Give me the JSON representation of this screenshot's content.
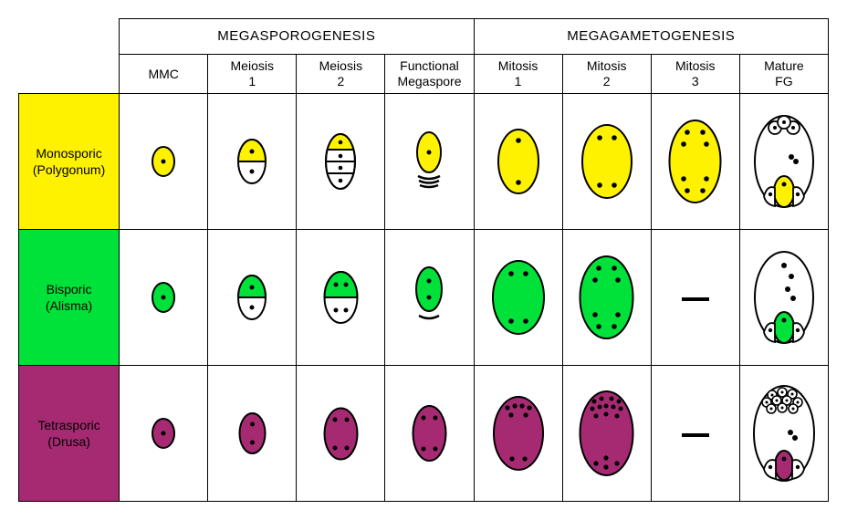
{
  "headers": {
    "group1": "MEGASPOROGENESIS",
    "group2": "MEGAGAMETOGENESIS",
    "cols": [
      "MMC",
      "Meiosis\n1",
      "Meiosis\n2",
      "Functional\nMegaspore",
      "Mitosis\n1",
      "Mitosis\n2",
      "Mitosis\n3",
      "Mature\nFG"
    ]
  },
  "rows": [
    {
      "label1": "Monosporic",
      "label2": "(Polygonum)",
      "color": "#fff200"
    },
    {
      "label1": "Bisporic",
      "label2": "(Alisma)",
      "color": "#00e23a"
    },
    {
      "label1": "Tetrasporic",
      "label2": "(Drusa)",
      "color": "#a62a72"
    }
  ],
  "stroke": "#000000",
  "col_widths": {
    "label": 110,
    "cell": 97
  }
}
